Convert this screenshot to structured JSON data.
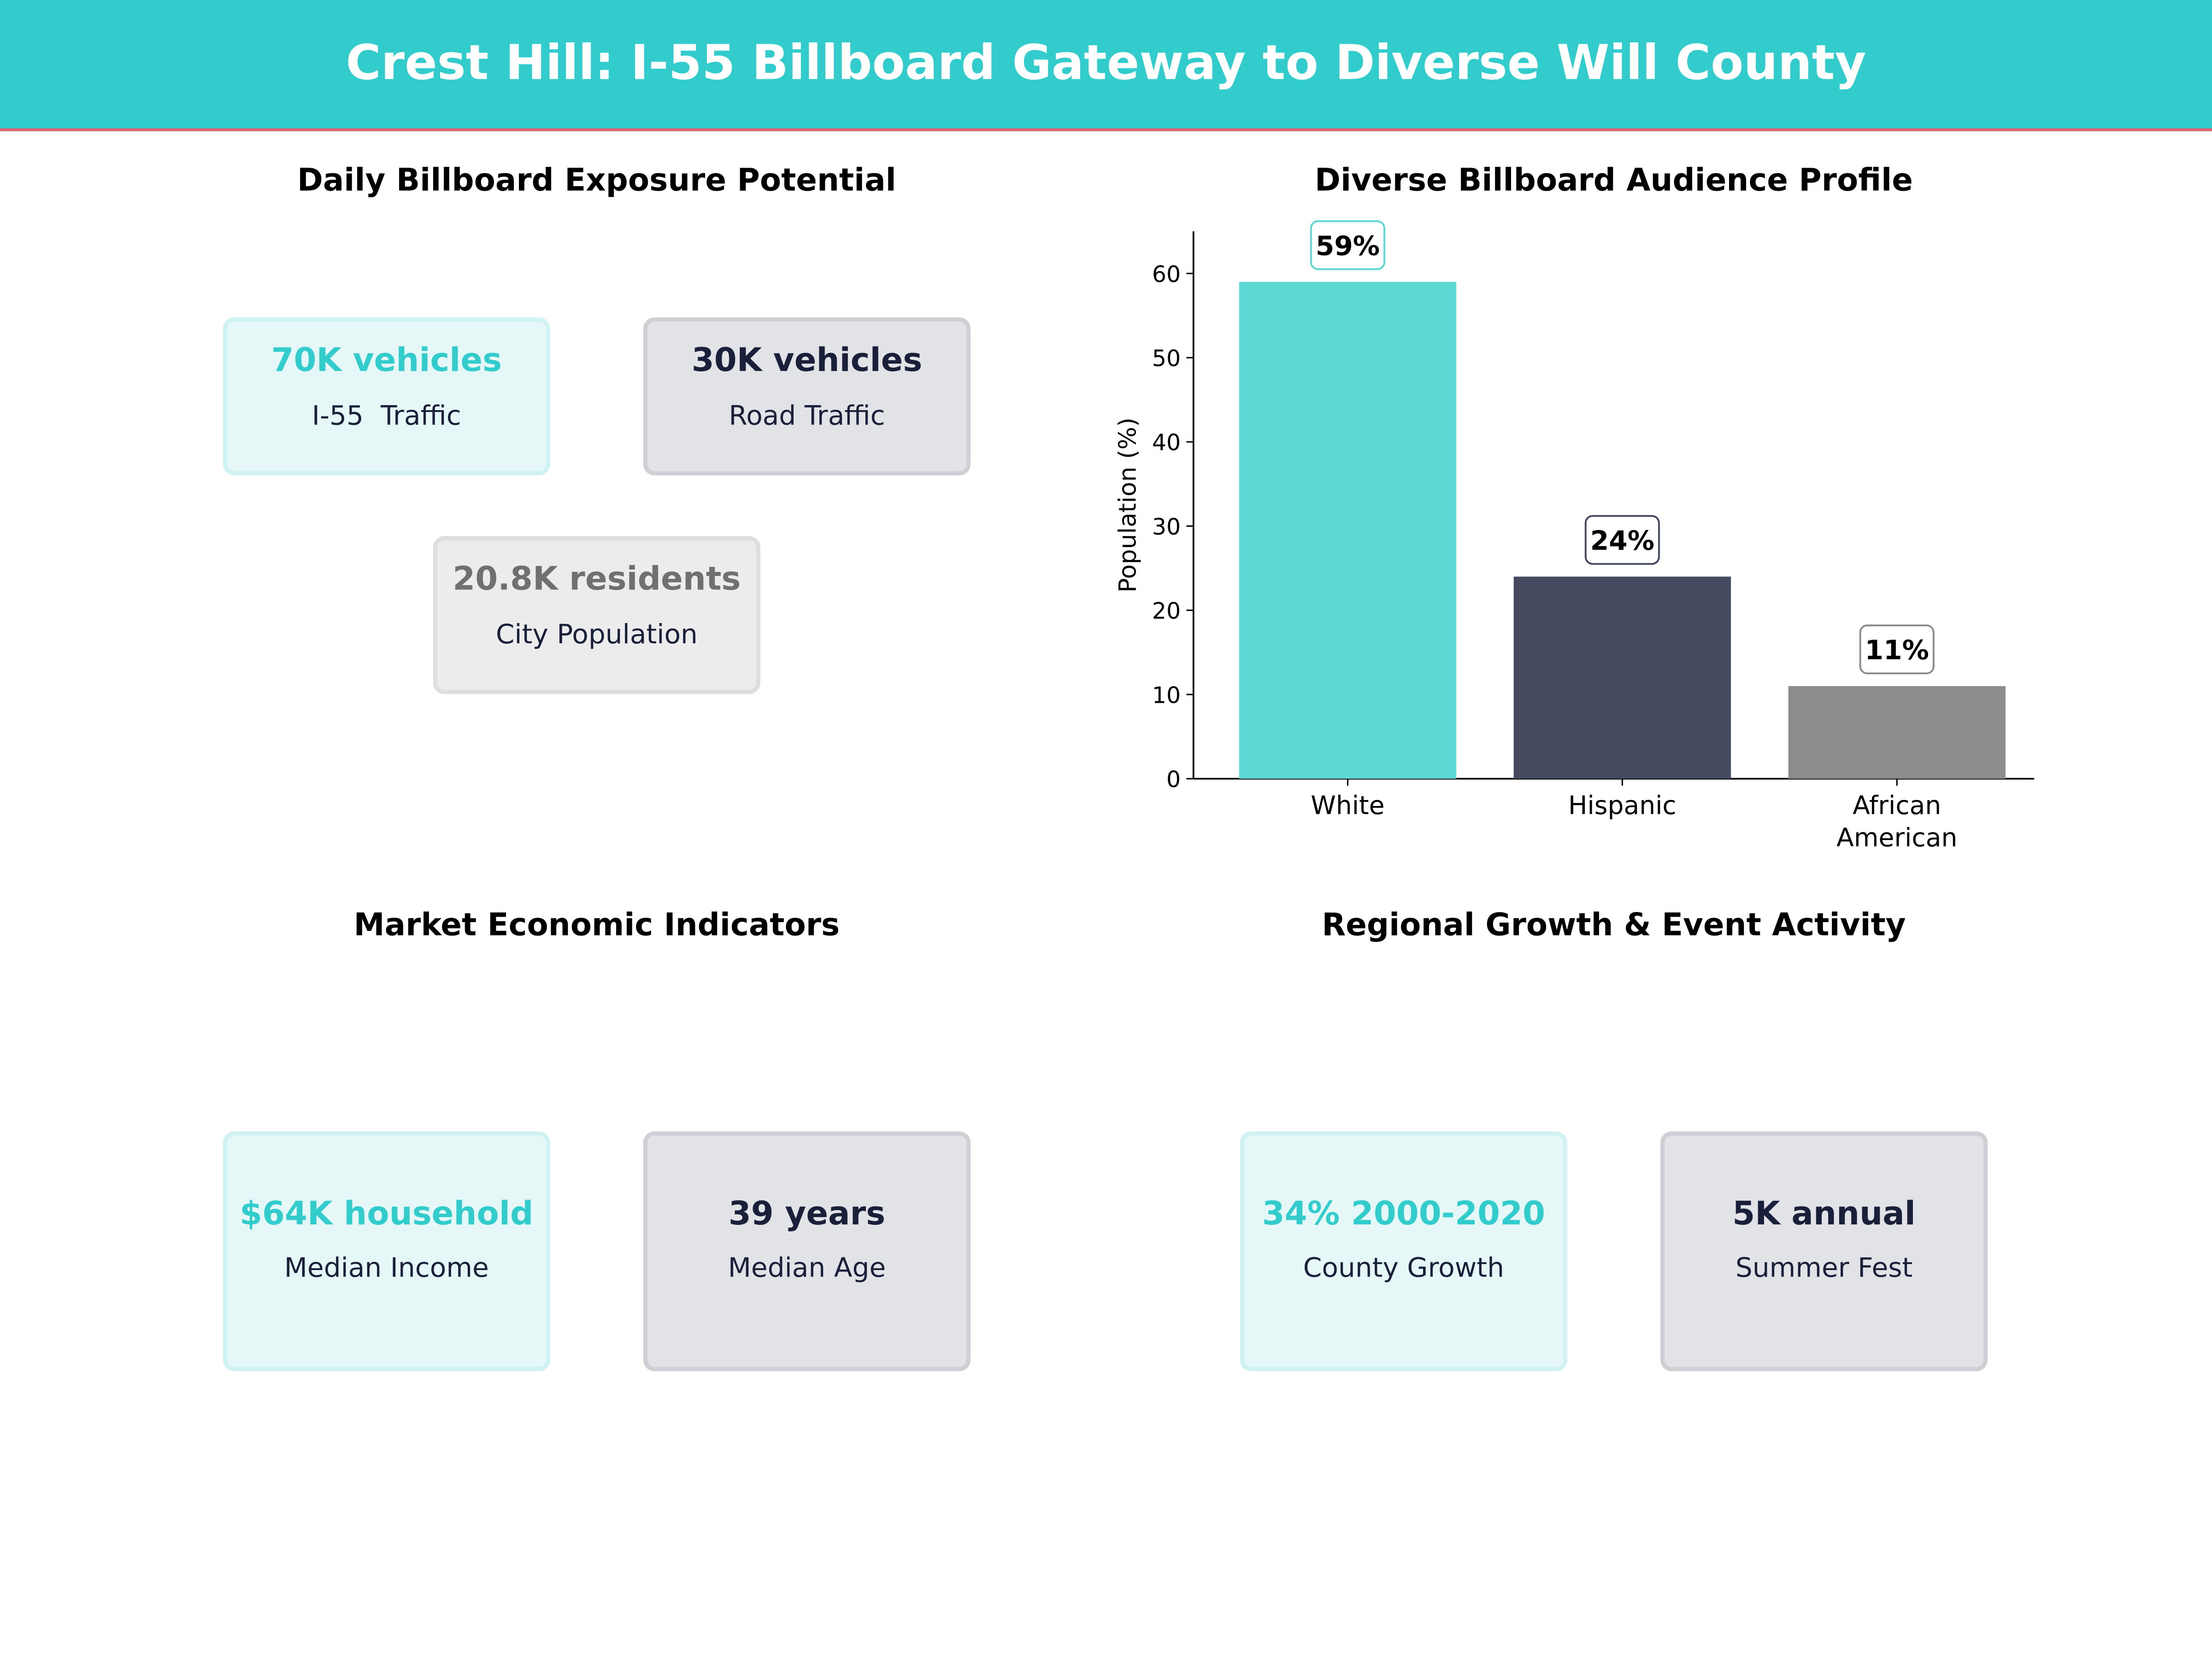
{
  "header": {
    "title": "Crest Hill: I-55 Billboard Gateway to Diverse Will County",
    "bg_color": "#33cccc",
    "accent_line": "#e06070"
  },
  "exposure": {
    "title": "Daily Billboard Exposure Potential",
    "cards": [
      {
        "value": "70K vehicles",
        "label": "I-55  Traffic"
      },
      {
        "value": "30K vehicles",
        "label": "Road Traffic"
      },
      {
        "value": "20.8K residents",
        "label": "City Population"
      }
    ]
  },
  "economic": {
    "title": "Market Economic Indicators",
    "cards": [
      {
        "value": "$64K household",
        "label": "Median Income"
      },
      {
        "value": "39 years",
        "label": "Median Age"
      }
    ]
  },
  "growth": {
    "title": "Regional Growth & Event Activity",
    "cards": [
      {
        "value": "34% 2000-2020",
        "label": "County Growth"
      },
      {
        "value": "5K annual",
        "label": "Summer Fest"
      }
    ]
  },
  "chart_data": {
    "type": "bar",
    "title": "Diverse Billboard Audience Profile",
    "xlabel": "",
    "ylabel": "Population (%)",
    "categories": [
      "White",
      "Hispanic",
      "African\nAmerican"
    ],
    "values": [
      59,
      24,
      11
    ],
    "data_labels": [
      "59%",
      "24%",
      "11%"
    ],
    "colors": [
      "#5dd8d5",
      "#464a60",
      "#8c8c8c"
    ],
    "label_border_colors": [
      "#5dd8d5",
      "#464a60",
      "#8c8c8c"
    ],
    "ylim": [
      0,
      65
    ],
    "yticks": [
      0,
      10,
      20,
      30,
      40,
      50,
      60
    ],
    "grid": false
  }
}
